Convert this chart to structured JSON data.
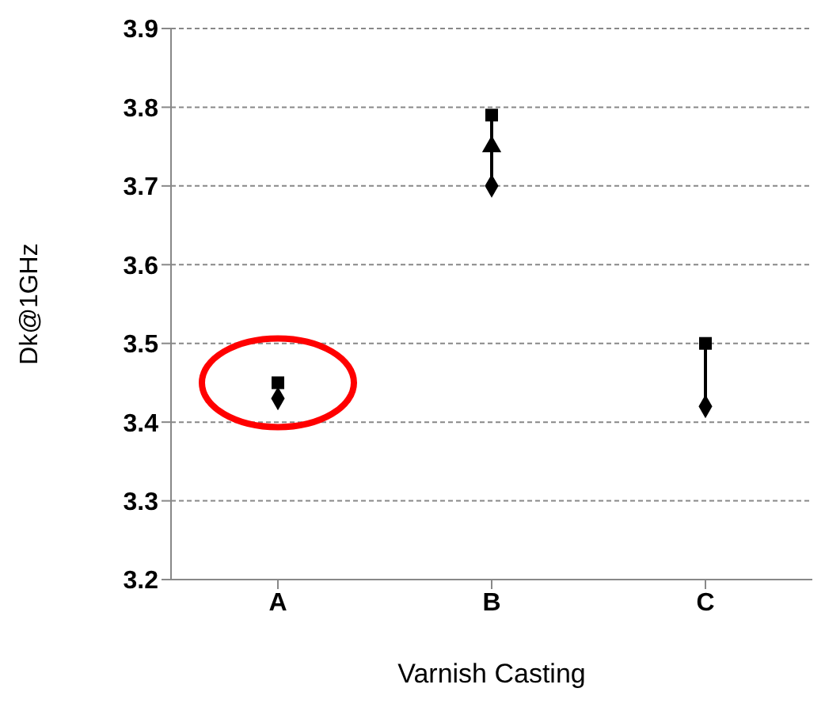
{
  "chart_data": {
    "type": "scatter",
    "xlabel": "Varnish Casting",
    "ylabel": "Dk@1GHz",
    "categories": [
      "A",
      "B",
      "C"
    ],
    "ylim": [
      3.2,
      3.9
    ],
    "yticks": [
      3.2,
      3.3,
      3.4,
      3.5,
      3.6,
      3.7,
      3.8,
      3.9
    ],
    "grid": "y",
    "series": [
      {
        "type": "line",
        "x": [
          "B",
          "B"
        ],
        "color": "#000000",
        "marker": "none",
        "values": [
          3.7,
          3.79
        ]
      },
      {
        "type": "line",
        "x": [
          "C",
          "C"
        ],
        "color": "#000000",
        "marker": "none",
        "values": [
          3.42,
          3.5
        ]
      },
      {
        "type": "scatter",
        "marker": "diamond",
        "color": "#000000",
        "values": [
          3.43,
          3.7,
          3.42
        ]
      },
      {
        "type": "scatter",
        "marker": "triangle",
        "color": "#000000",
        "values": [
          null,
          3.75,
          null
        ]
      },
      {
        "type": "scatter",
        "marker": "square",
        "color": "#000000",
        "values": [
          3.45,
          3.79,
          3.5
        ]
      }
    ]
  }
}
